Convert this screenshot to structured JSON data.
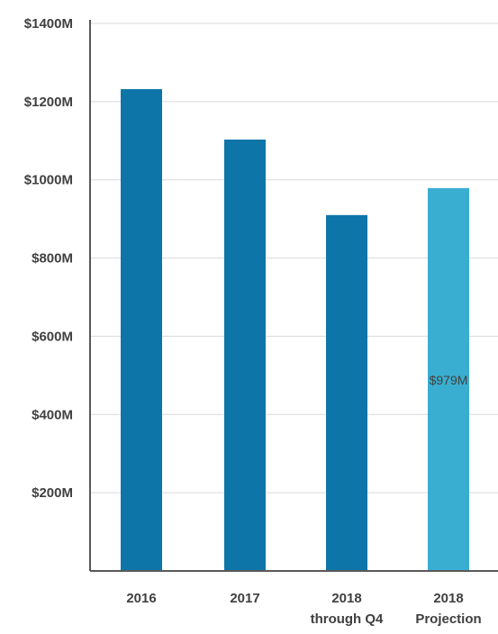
{
  "chart_data": {
    "type": "bar",
    "categories": [
      [
        "2016"
      ],
      [
        "2017"
      ],
      [
        "2018",
        "through Q4"
      ],
      [
        "2018",
        "Projection"
      ]
    ],
    "values": [
      1232,
      1103,
      910,
      979
    ],
    "bar_colors": [
      "#0e75a8",
      "#0e75a8",
      "#0e75a8",
      "#3aaed0"
    ],
    "data_labels": [
      null,
      null,
      null,
      "$979M"
    ],
    "y_ticks": [
      200,
      400,
      600,
      800,
      1000,
      1200,
      1400
    ],
    "y_tick_labels": [
      "$200M",
      "$400M",
      "$600M",
      "$800M",
      "$1000M",
      "$1200M",
      "$1400M"
    ],
    "ylim": [
      0,
      1400
    ],
    "grid": true,
    "title": "",
    "xlabel": "",
    "ylabel": ""
  }
}
